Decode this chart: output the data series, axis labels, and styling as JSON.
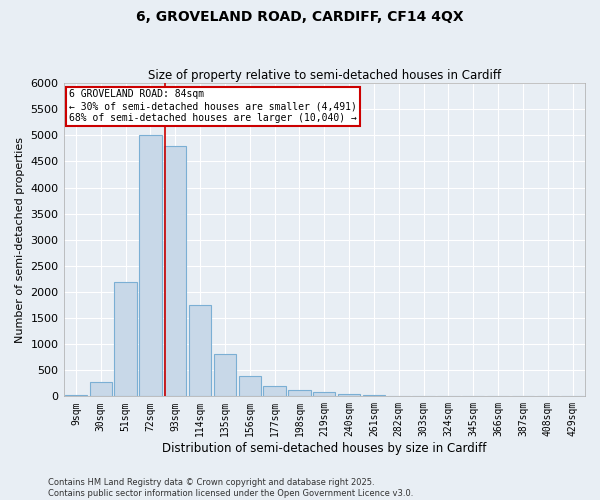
{
  "title_line1": "6, GROVELAND ROAD, CARDIFF, CF14 4QX",
  "title_line2": "Size of property relative to semi-detached houses in Cardiff",
  "xlabel": "Distribution of semi-detached houses by size in Cardiff",
  "ylabel": "Number of semi-detached properties",
  "categories": [
    "9sqm",
    "30sqm",
    "51sqm",
    "72sqm",
    "93sqm",
    "114sqm",
    "135sqm",
    "156sqm",
    "177sqm",
    "198sqm",
    "219sqm",
    "240sqm",
    "261sqm",
    "282sqm",
    "303sqm",
    "324sqm",
    "345sqm",
    "366sqm",
    "387sqm",
    "408sqm",
    "429sqm"
  ],
  "values": [
    30,
    270,
    2200,
    5000,
    4800,
    1750,
    820,
    390,
    190,
    120,
    80,
    40,
    20,
    10,
    5,
    5,
    5,
    5,
    5,
    5,
    5
  ],
  "bar_color": "#c8d8e8",
  "bar_edge_color": "#7bafd4",
  "background_color": "#e8eef4",
  "grid_color": "#ffffff",
  "property_size": 84,
  "property_label": "6 GROVELAND ROAD: 84sqm",
  "pct_smaller": 30,
  "pct_larger": 68,
  "count_smaller": 4491,
  "count_larger": 10040,
  "redline_color": "#cc0000",
  "annotation_box_color": "#cc0000",
  "ylim": [
    0,
    6000
  ],
  "yticks": [
    0,
    500,
    1000,
    1500,
    2000,
    2500,
    3000,
    3500,
    4000,
    4500,
    5000,
    5500,
    6000
  ],
  "footer_line1": "Contains HM Land Registry data © Crown copyright and database right 2025.",
  "footer_line2": "Contains public sector information licensed under the Open Government Licence v3.0."
}
